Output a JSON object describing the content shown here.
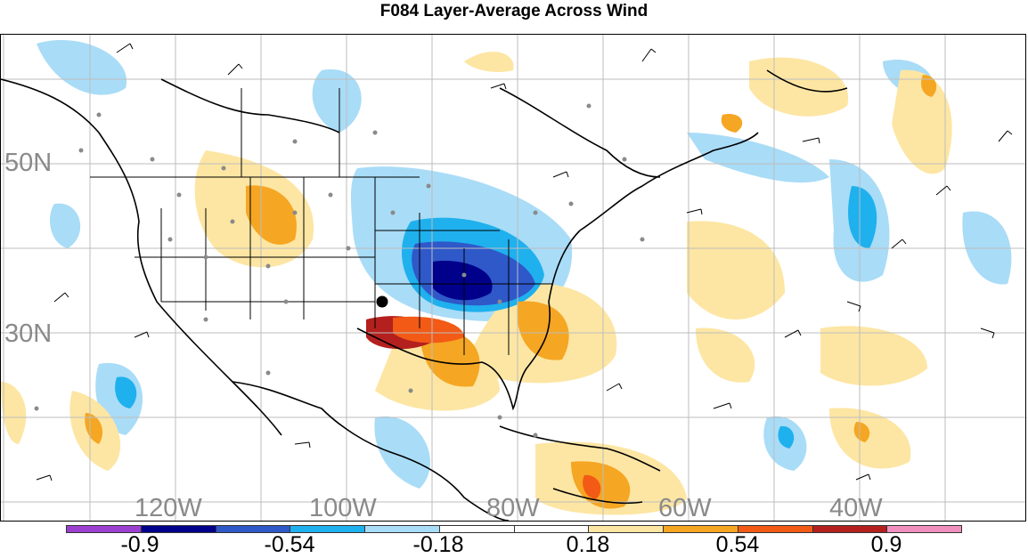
{
  "title": "F084 Layer-Average Across Wind",
  "map": {
    "lat_labels": [
      "50N",
      "30N"
    ],
    "lon_labels": [
      "120W",
      "100W",
      "80W",
      "60W",
      "40W"
    ]
  },
  "colorbar": {
    "colors": [
      "#9b3fd1",
      "#00008b",
      "#2f58c9",
      "#1fb0ee",
      "#a9dcf7",
      "#ffffff",
      "#fde6a3",
      "#f5a623",
      "#f25a16",
      "#b3201e",
      "#f18fbf"
    ],
    "labels": [
      "-0.9",
      "-0.54",
      "-0.18",
      "0.18",
      "0.54",
      "0.9"
    ]
  }
}
